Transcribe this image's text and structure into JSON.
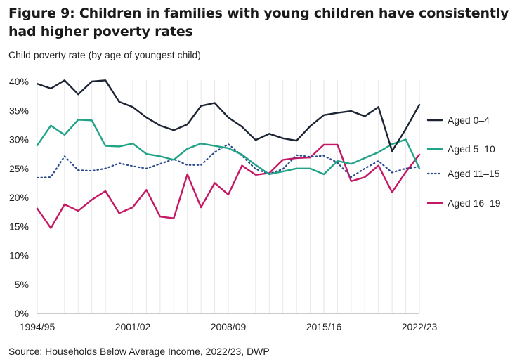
{
  "title": "Figure 9: Children in families with young children have consistently had higher poverty rates",
  "ylabel": "Child poverty rate (by age of youngest child)",
  "source": "Source: Households Below Average Income, 2022/23, DWP",
  "chart_data": {
    "type": "line",
    "title": "Figure 9: Children in families with young children have consistently had higher poverty rates",
    "xlabel": "",
    "ylabel": "Child poverty rate (by age of youngest child)",
    "ylim": [
      0,
      40
    ],
    "yticks": [
      0,
      5,
      10,
      15,
      20,
      25,
      30,
      35,
      40
    ],
    "ytick_labels": [
      "0%",
      "5%",
      "10%",
      "15%",
      "20%",
      "25%",
      "30%",
      "35%",
      "40%"
    ],
    "grid": "vertical",
    "legend": "right",
    "x": [
      "1994/95",
      "1995/96",
      "1996/97",
      "1997/98",
      "1998/99",
      "1999/00",
      "2000/01",
      "2001/02",
      "2002/03",
      "2003/04",
      "2004/05",
      "2005/06",
      "2006/07",
      "2007/08",
      "2008/09",
      "2009/10",
      "2010/11",
      "2011/12",
      "2012/13",
      "2013/14",
      "2014/15",
      "2015/16",
      "2016/17",
      "2017/18",
      "2018/19",
      "2019/20",
      "2020/21",
      "2021/22",
      "2022/23"
    ],
    "xtick_labels": [
      "1994/95",
      "2001/02",
      "2008/09",
      "2015/16",
      "2022/23"
    ],
    "series": [
      {
        "name": "Aged 0–4",
        "color": "#1c2434",
        "style": "solid",
        "values": [
          39.6,
          38.8,
          40.2,
          37.8,
          40.0,
          40.2,
          36.5,
          35.6,
          33.8,
          32.4,
          31.6,
          32.6,
          35.8,
          36.3,
          33.8,
          32.2,
          29.9,
          31.0,
          30.2,
          29.8,
          32.3,
          34.2,
          34.6,
          34.9,
          34.0,
          35.6,
          28.0,
          31.8,
          36.0
        ]
      },
      {
        "name": "Aged 5–10",
        "color": "#22a387",
        "style": "solid",
        "values": [
          29.0,
          32.4,
          30.8,
          33.4,
          33.3,
          28.9,
          28.8,
          29.3,
          27.5,
          27.1,
          26.5,
          28.4,
          29.3,
          28.9,
          28.5,
          27.4,
          25.6,
          24.0,
          24.5,
          25.0,
          25.0,
          24.0,
          26.3,
          25.8,
          26.8,
          27.8,
          29.2,
          30.0,
          25.0
        ]
      },
      {
        "name": "Aged 11–15",
        "color": "#2a4a8c",
        "style": "dotted",
        "values": [
          23.4,
          23.5,
          27.1,
          24.7,
          24.6,
          25.0,
          25.9,
          25.4,
          25.0,
          25.8,
          26.6,
          25.6,
          25.6,
          27.8,
          29.2,
          27.2,
          24.9,
          24.1,
          24.9,
          27.3,
          27.0,
          27.2,
          26.0,
          23.5,
          25.0,
          26.3,
          24.3,
          25.0,
          25.3
        ]
      },
      {
        "name": "Aged 16–19",
        "color": "#c41864",
        "style": "solid",
        "values": [
          18.1,
          14.7,
          18.8,
          17.7,
          19.6,
          21.1,
          17.3,
          18.3,
          21.3,
          16.7,
          16.4,
          24.0,
          18.3,
          22.5,
          20.5,
          25.5,
          23.9,
          24.2,
          26.5,
          26.8,
          26.9,
          29.1,
          29.1,
          22.8,
          23.5,
          25.5,
          20.9,
          24.4,
          27.4
        ]
      }
    ]
  }
}
